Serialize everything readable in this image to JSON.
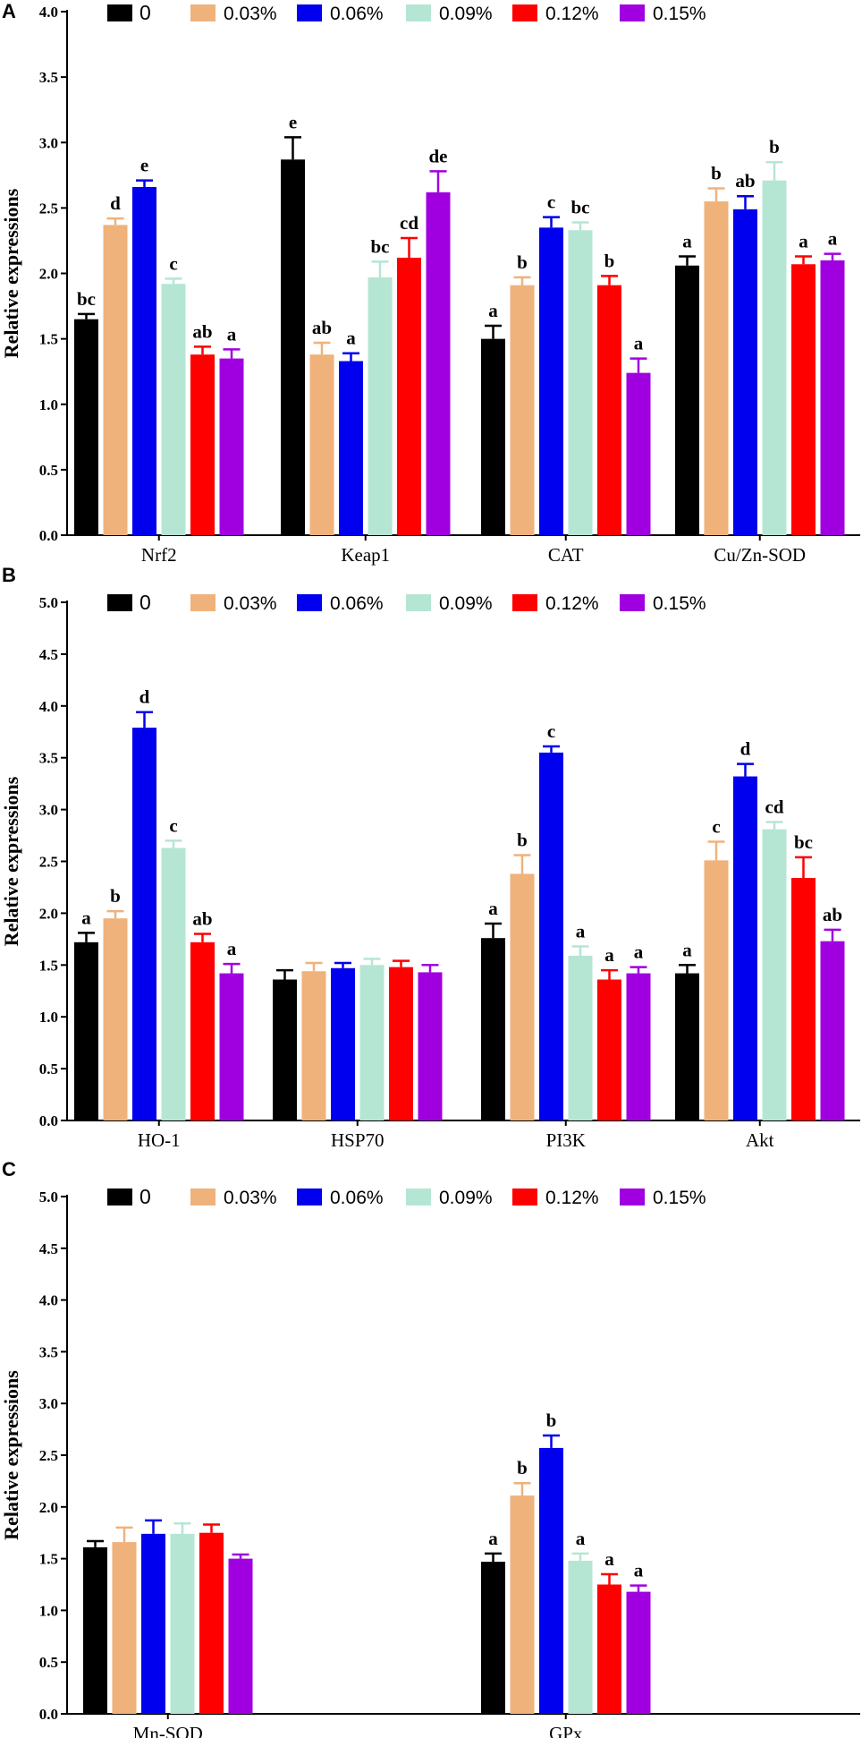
{
  "chart_data": [
    {
      "panel": "A",
      "type": "bar",
      "ylabel": "Relative expressions",
      "ylim": [
        0,
        4.0
      ],
      "yticks": [
        "0.0",
        "0.5",
        "1.0",
        "1.5",
        "2.0",
        "2.5",
        "3.0",
        "3.5",
        "4.0"
      ],
      "categories": [
        "Nrf2",
        "Keap1",
        "CAT",
        "Cu/Zn-SOD"
      ],
      "series": [
        {
          "name": "0",
          "color": "#000000",
          "values": [
            1.65,
            2.87,
            1.5,
            2.06
          ],
          "errors": [
            0.04,
            0.17,
            0.1,
            0.07
          ],
          "labels": [
            "bc",
            "e",
            "a",
            "a"
          ]
        },
        {
          "name": "0.03%",
          "color": "#efb27b",
          "values": [
            2.37,
            1.38,
            1.91,
            2.55
          ],
          "errors": [
            0.05,
            0.09,
            0.06,
            0.1
          ],
          "labels": [
            "d",
            "ab",
            "b",
            "b"
          ]
        },
        {
          "name": "0.06%",
          "color": "#0000ee",
          "values": [
            2.66,
            1.33,
            2.35,
            2.49
          ],
          "errors": [
            0.05,
            0.06,
            0.08,
            0.1
          ],
          "labels": [
            "e",
            "a",
            "c",
            "ab"
          ]
        },
        {
          "name": "0.09%",
          "color": "#b5e6d4",
          "values": [
            1.92,
            1.97,
            2.33,
            2.71
          ],
          "errors": [
            0.04,
            0.12,
            0.06,
            0.14
          ],
          "labels": [
            "c",
            "bc",
            "bc",
            "b"
          ]
        },
        {
          "name": "0.12%",
          "color": "#ff0000",
          "values": [
            1.38,
            2.12,
            1.91,
            2.07
          ],
          "errors": [
            0.06,
            0.15,
            0.07,
            0.06
          ],
          "labels": [
            "ab",
            "cd",
            "b",
            "a"
          ]
        },
        {
          "name": "0.15%",
          "color": "#a000e0",
          "values": [
            1.35,
            2.62,
            1.24,
            2.1
          ],
          "errors": [
            0.07,
            0.16,
            0.11,
            0.05
          ],
          "labels": [
            "a",
            "de",
            "a",
            "a"
          ]
        }
      ]
    },
    {
      "panel": "B",
      "type": "bar",
      "ylabel": "Relative expressions",
      "ylim": [
        0,
        5.0
      ],
      "yticks": [
        "0.0",
        "0.5",
        "1.0",
        "1.5",
        "2.0",
        "2.5",
        "3.0",
        "3.5",
        "4.0",
        "4.5",
        "5.0"
      ],
      "categories": [
        "HO-1",
        "HSP70",
        "PI3K",
        "Akt"
      ],
      "series": [
        {
          "name": "0",
          "color": "#000000",
          "values": [
            1.72,
            1.36,
            1.76,
            1.42
          ],
          "errors": [
            0.09,
            0.09,
            0.14,
            0.08
          ],
          "labels": [
            "a",
            "",
            "a",
            "a"
          ]
        },
        {
          "name": "0.03%",
          "color": "#efb27b",
          "values": [
            1.95,
            1.44,
            2.38,
            2.51
          ],
          "errors": [
            0.07,
            0.08,
            0.18,
            0.18
          ],
          "labels": [
            "b",
            "",
            "b",
            "c"
          ]
        },
        {
          "name": "0.06%",
          "color": "#0000ee",
          "values": [
            3.79,
            1.47,
            3.55,
            3.32
          ],
          "errors": [
            0.15,
            0.05,
            0.06,
            0.12
          ],
          "labels": [
            "d",
            "",
            "c",
            "d"
          ]
        },
        {
          "name": "0.09%",
          "color": "#b5e6d4",
          "values": [
            2.63,
            1.5,
            1.59,
            2.81
          ],
          "errors": [
            0.07,
            0.06,
            0.09,
            0.07
          ],
          "labels": [
            "c",
            "",
            "a",
            "cd"
          ]
        },
        {
          "name": "0.12%",
          "color": "#ff0000",
          "values": [
            1.72,
            1.48,
            1.36,
            2.34
          ],
          "errors": [
            0.08,
            0.06,
            0.09,
            0.2
          ],
          "labels": [
            "ab",
            "",
            "a",
            "bc"
          ]
        },
        {
          "name": "0.15%",
          "color": "#a000e0",
          "values": [
            1.42,
            1.43,
            1.42,
            1.73
          ],
          "errors": [
            0.09,
            0.07,
            0.06,
            0.11
          ],
          "labels": [
            "a",
            "",
            "a",
            "ab"
          ]
        }
      ]
    },
    {
      "panel": "C",
      "type": "bar",
      "ylabel": "Relative expressions",
      "ylim": [
        0,
        5.0
      ],
      "yticks": [
        "0.0",
        "0.5",
        "1.0",
        "1.5",
        "2.0",
        "2.5",
        "3.0",
        "3.5",
        "4.0",
        "4.5",
        "5.0"
      ],
      "categories": [
        "Mn-SOD",
        "GPx"
      ],
      "series": [
        {
          "name": "0",
          "color": "#000000",
          "values": [
            1.61,
            1.47
          ],
          "errors": [
            0.06,
            0.08
          ],
          "labels": [
            "",
            "a"
          ]
        },
        {
          "name": "0.03%",
          "color": "#efb27b",
          "values": [
            1.66,
            2.11
          ],
          "errors": [
            0.14,
            0.12
          ],
          "labels": [
            "",
            "b"
          ]
        },
        {
          "name": "0.06%",
          "color": "#0000ee",
          "values": [
            1.74,
            2.57
          ],
          "errors": [
            0.13,
            0.12
          ],
          "labels": [
            "",
            "b"
          ]
        },
        {
          "name": "0.09%",
          "color": "#b5e6d4",
          "values": [
            1.74,
            1.48
          ],
          "errors": [
            0.1,
            0.07
          ],
          "labels": [
            "",
            "a"
          ]
        },
        {
          "name": "0.12%",
          "color": "#ff0000",
          "values": [
            1.75,
            1.25
          ],
          "errors": [
            0.08,
            0.1
          ],
          "labels": [
            "",
            "a"
          ]
        },
        {
          "name": "0.15%",
          "color": "#a000e0",
          "values": [
            1.5,
            1.18
          ],
          "errors": [
            0.04,
            0.06
          ],
          "labels": [
            "",
            "a"
          ]
        }
      ]
    }
  ]
}
